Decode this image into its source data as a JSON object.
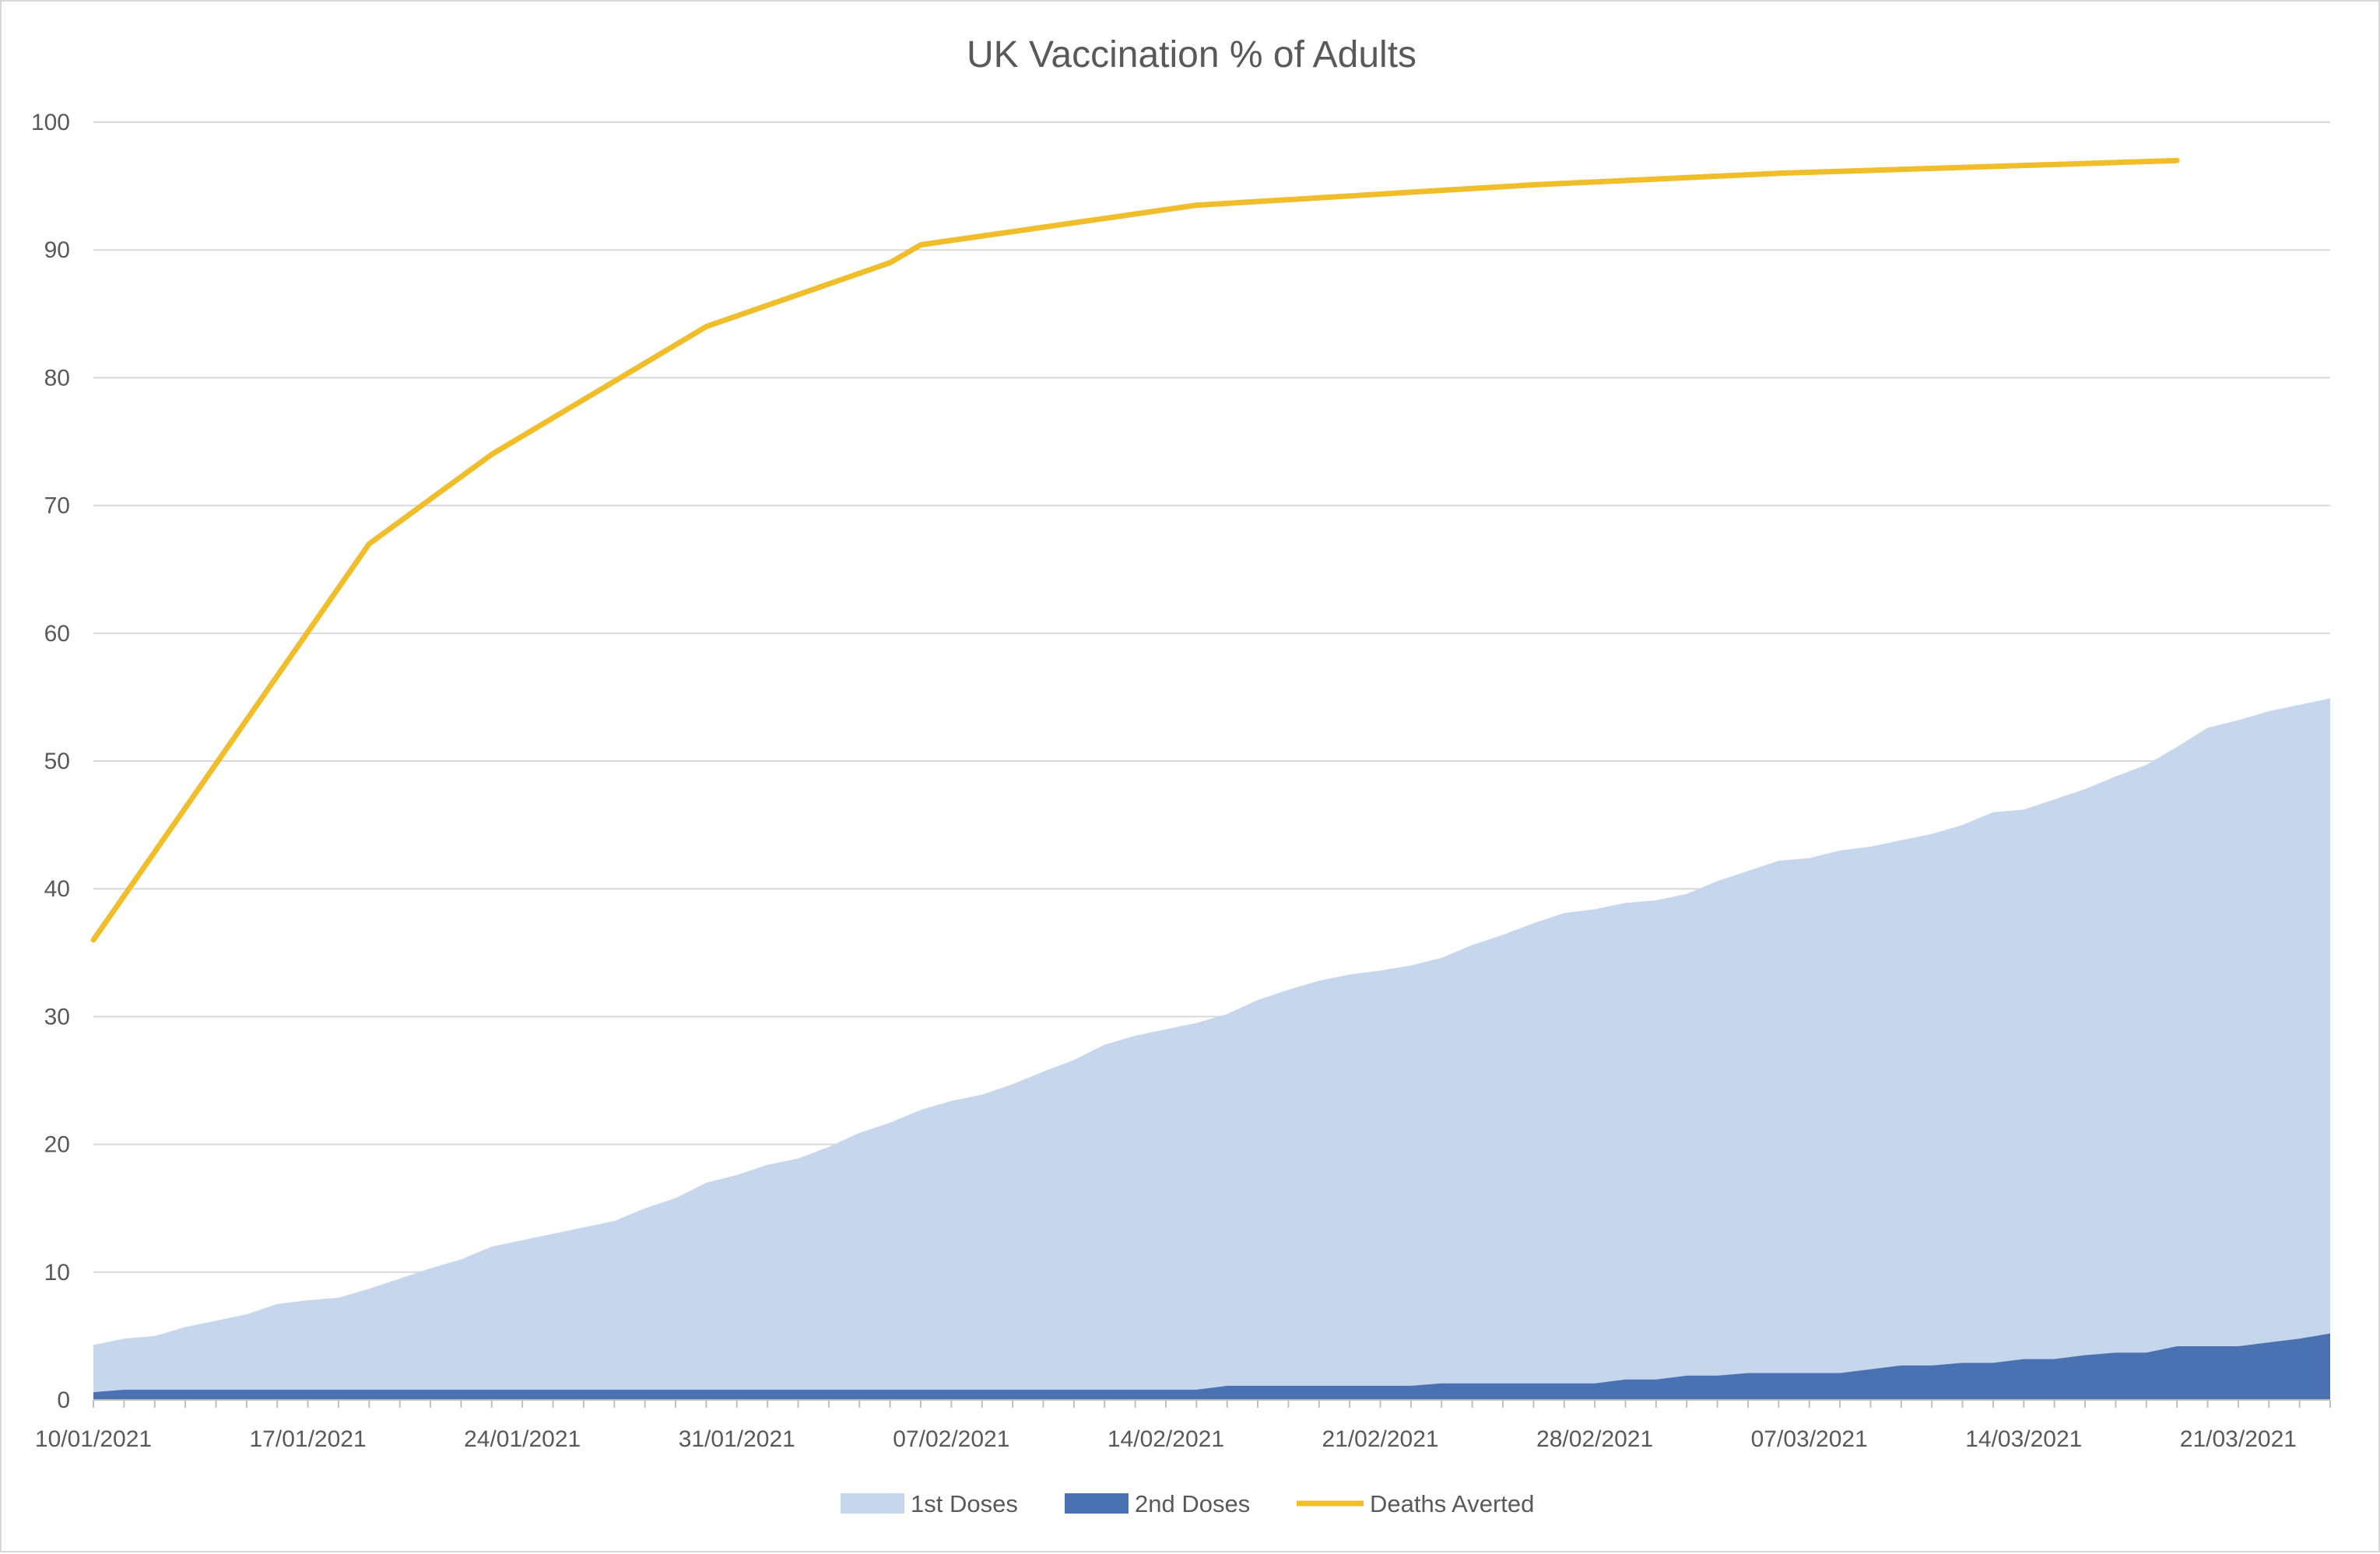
{
  "chart_data": {
    "type": "area",
    "title": "UK Vaccination % of Adults",
    "xlabel": "",
    "ylabel": "",
    "x_start": "10/01/2021",
    "x_end": "24/03/2021",
    "ylim": [
      0,
      100
    ],
    "yticks": [
      "0",
      "10",
      "20",
      "30",
      "40",
      "50",
      "60",
      "70",
      "80",
      "90",
      "100"
    ],
    "xticks": [
      "10/01/2021",
      "17/01/2021",
      "24/01/2021",
      "31/01/2021",
      "07/02/2021",
      "14/02/2021",
      "21/02/2021",
      "28/02/2021",
      "07/03/2021",
      "14/03/2021",
      "21/03/2021"
    ],
    "grid": true,
    "legend": "bottom",
    "series": [
      {
        "name": "1st Doses",
        "kind": "area",
        "color": "#c5d6ed",
        "values": [
          4.3,
          4.8,
          5.0,
          5.7,
          6.2,
          6.7,
          7.5,
          7.8,
          8.0,
          8.7,
          9.5,
          10.3,
          11.0,
          12.0,
          12.5,
          13.0,
          13.5,
          14.0,
          15.0,
          15.8,
          17.0,
          17.6,
          18.4,
          18.9,
          19.8,
          20.9,
          21.7,
          22.7,
          23.4,
          23.9,
          24.7,
          25.7,
          26.6,
          27.8,
          28.5,
          29.0,
          29.5,
          30.2,
          31.3,
          32.1,
          32.8,
          33.3,
          33.6,
          34.0,
          34.6,
          35.6,
          36.4,
          37.3,
          38.1,
          38.4,
          38.9,
          39.1,
          39.6,
          40.6,
          41.4,
          42.2,
          42.4,
          43.0,
          43.3,
          43.8,
          44.3,
          45.0,
          46.0,
          46.2,
          47.0,
          47.8,
          48.8,
          49.7,
          51.1,
          52.6,
          53.2,
          53.9,
          54.4,
          54.9
        ]
      },
      {
        "name": "2nd Doses",
        "kind": "area",
        "color": "#4a72b2",
        "values": [
          0.6,
          0.8,
          0.8,
          0.8,
          0.8,
          0.8,
          0.8,
          0.8,
          0.8,
          0.8,
          0.8,
          0.8,
          0.8,
          0.8,
          0.8,
          0.8,
          0.8,
          0.8,
          0.8,
          0.8,
          0.8,
          0.8,
          0.8,
          0.8,
          0.8,
          0.8,
          0.8,
          0.8,
          0.8,
          0.8,
          0.8,
          0.8,
          0.8,
          0.8,
          0.8,
          0.8,
          0.8,
          1.1,
          1.1,
          1.1,
          1.1,
          1.1,
          1.1,
          1.1,
          1.3,
          1.3,
          1.3,
          1.3,
          1.3,
          1.3,
          1.6,
          1.6,
          1.9,
          1.9,
          2.1,
          2.1,
          2.1,
          2.1,
          2.4,
          2.7,
          2.7,
          2.9,
          2.9,
          3.2,
          3.2,
          3.5,
          3.7,
          3.7,
          4.2,
          4.2,
          4.2,
          4.5,
          4.8,
          5.2
        ]
      },
      {
        "name": "Deaths Averted",
        "kind": "line",
        "color": "#f0bd2b",
        "points": [
          {
            "x": "10/01/2021",
            "y": 36
          },
          {
            "x": "19/01/2021",
            "y": 67
          },
          {
            "x": "23/01/2021",
            "y": 74
          },
          {
            "x": "30/01/2021",
            "y": 84
          },
          {
            "x": "05/02/2021",
            "y": 89
          },
          {
            "x": "06/02/2021",
            "y": 90.4
          },
          {
            "x": "15/02/2021",
            "y": 93.5
          },
          {
            "x": "26/02/2021",
            "y": 95.1
          },
          {
            "x": "06/03/2021",
            "y": 96.0
          },
          {
            "x": "19/03/2021",
            "y": 97.0
          }
        ]
      }
    ]
  }
}
